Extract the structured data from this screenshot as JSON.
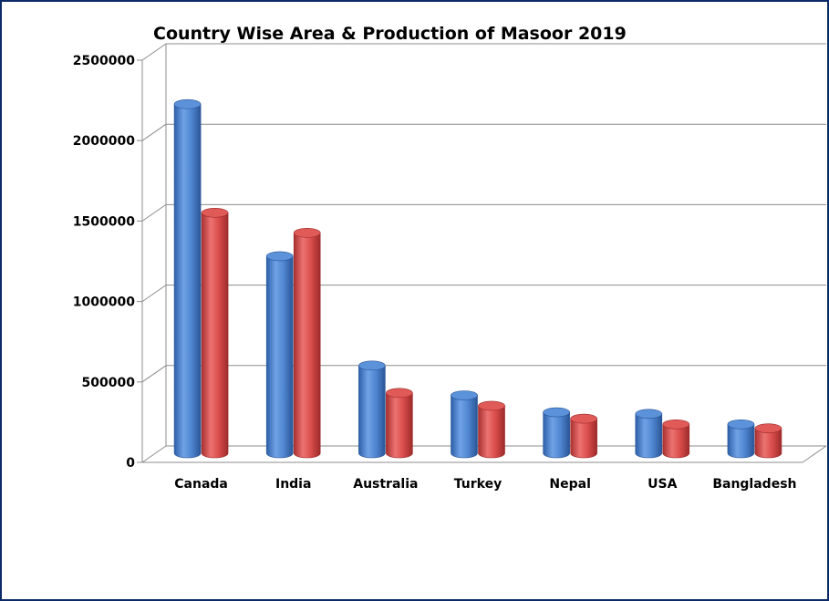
{
  "chart_data": {
    "type": "bar",
    "title": "Country Wise Area & Production of Masoor 2019",
    "categories": [
      "Canada",
      "India",
      "Australia",
      "Turkey",
      "Nepal",
      "USA",
      "Bangladesh"
    ],
    "series": [
      {
        "color": "#4f86d0",
        "values": [
          2170000,
          1225000,
          545000,
          360000,
          255000,
          245000,
          180000
        ]
      },
      {
        "color": "#d94d4b",
        "values": [
          1495000,
          1370000,
          375000,
          295000,
          215000,
          180000,
          155000
        ]
      }
    ],
    "ylim": [
      0,
      2500000
    ],
    "yticks": [
      "0",
      "500000",
      "1000000",
      "1500000",
      "2000000",
      "2500000"
    ],
    "grid": true,
    "legend": "none",
    "style": "3d-cylinder"
  }
}
